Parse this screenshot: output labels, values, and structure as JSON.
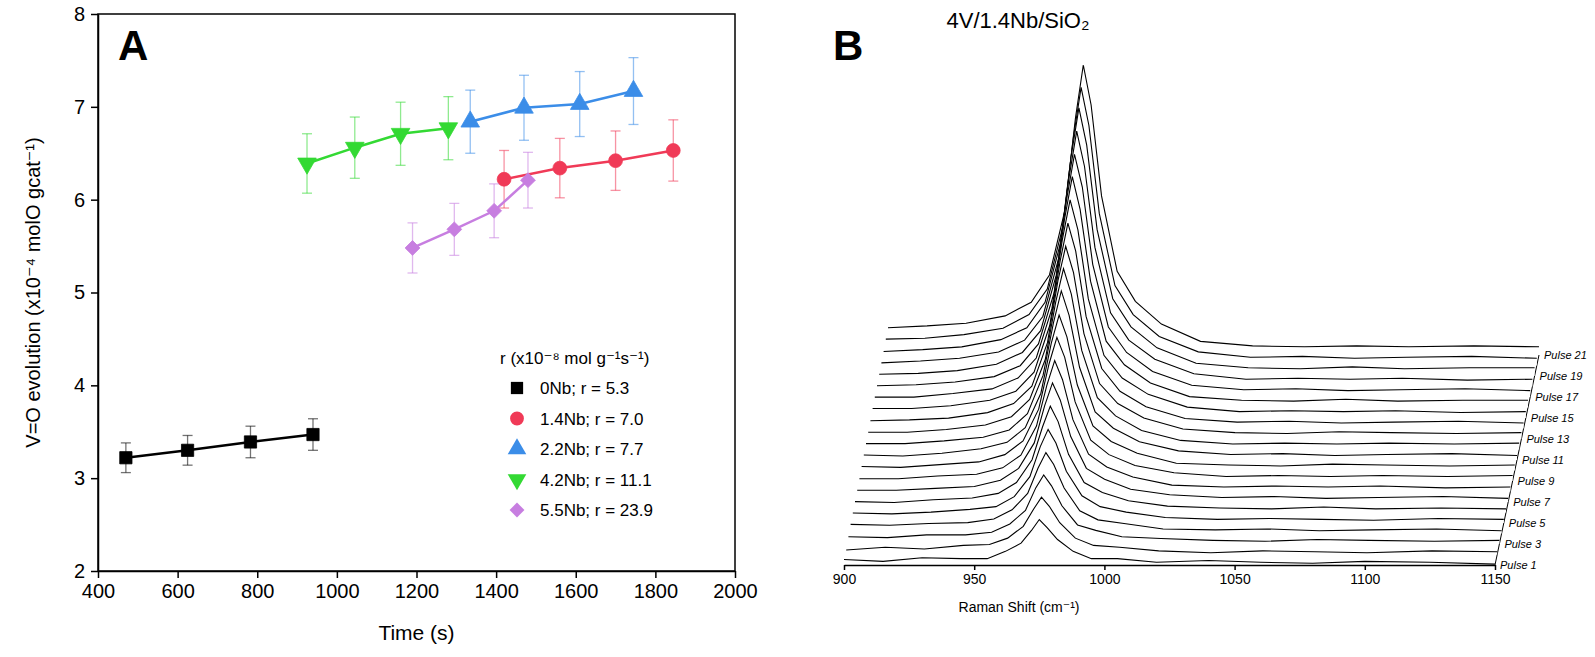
{
  "chart_data": [
    {
      "type": "line",
      "annotations": [
        "A"
      ],
      "x_label": "Time (s)",
      "y_label": "V=O evolution (x10⁻⁴ molO gcat⁻¹)",
      "xlim": [
        400,
        2000
      ],
      "xticks": [
        400,
        600,
        800,
        1000,
        1200,
        1400,
        1600,
        1800,
        2000
      ],
      "ylim": [
        2,
        8
      ],
      "yticks": [
        2,
        3,
        4,
        5,
        6,
        7,
        8
      ],
      "legend": "bottom-right",
      "legend_title": "r (x10⁻⁸ mol g⁻¹s⁻¹)",
      "series": [
        {
          "name": "0Nb; r = 5.3",
          "color": "#000000",
          "marker": "square",
          "line_style": "solid",
          "x": [
            470,
            625,
            783,
            940
          ],
          "values": [
            3.22,
            3.3,
            3.39,
            3.47
          ],
          "errors": [
            0.16,
            0.16,
            0.17,
            0.17
          ]
        },
        {
          "name": "1.4Nb; r = 7.0",
          "color": "#f03a57",
          "marker": "circle",
          "line_style": "solid",
          "x": [
            1420,
            1560,
            1700,
            1845
          ],
          "values": [
            6.22,
            6.34,
            6.42,
            6.53
          ],
          "errors": [
            0.31,
            0.32,
            0.32,
            0.33
          ]
        },
        {
          "name": "2.2Nb; r = 7.7",
          "color": "#3b8de8",
          "marker": "triangle-up",
          "line_style": "solid",
          "x": [
            1335,
            1470,
            1610,
            1745
          ],
          "values": [
            6.84,
            6.99,
            7.03,
            7.17
          ],
          "errors": [
            0.34,
            0.35,
            0.35,
            0.36
          ]
        },
        {
          "name": "4.2Nb; r = 11.1",
          "color": "#33d933",
          "marker": "triangle-down",
          "line_style": "solid",
          "x": [
            925,
            1045,
            1160,
            1280
          ],
          "values": [
            6.39,
            6.56,
            6.71,
            6.77
          ],
          "errors": [
            0.32,
            0.33,
            0.34,
            0.34
          ]
        },
        {
          "name": "5.5Nb; r = 23.9",
          "color": "#c77ee0",
          "marker": "diamond",
          "line_style": "solid",
          "x": [
            1190,
            1295,
            1395,
            1480
          ],
          "values": [
            5.48,
            5.68,
            5.88,
            6.21
          ],
          "errors": [
            0.27,
            0.28,
            0.29,
            0.3
          ]
        }
      ]
    },
    {
      "type": "waterfall",
      "title": "4V/1.4Nb/SiO₂",
      "annotations": [
        "B"
      ],
      "x_label": "Raman Shift (cm⁻¹)",
      "xlim": [
        900,
        1150
      ],
      "xticks": [
        900,
        950,
        1000,
        1050,
        1100,
        1150
      ],
      "ylim": [
        0,
        330
      ],
      "tick_labels": "x",
      "color": "#000000",
      "x": [
        900,
        915,
        930,
        945,
        955,
        962,
        968,
        972,
        975,
        978,
        982,
        988,
        995,
        1005,
        1020,
        1040,
        1060,
        1080,
        1100,
        1125,
        1150
      ],
      "series": [
        {
          "name": "Pulse 1",
          "values": [
            6,
            4,
            8,
            7,
            7,
            15,
            24,
            38,
            50,
            41,
            28,
            15,
            7,
            7,
            3,
            5,
            3,
            2,
            4,
            3,
            1
          ]
        },
        {
          "values": [
            5,
            8,
            6,
            10,
            11,
            18,
            31,
            50,
            63,
            53,
            35,
            18,
            10,
            8,
            4,
            2,
            4,
            3,
            2,
            4,
            3
          ]
        },
        {
          "name": "Pulse 3",
          "values": [
            8,
            7,
            10,
            10,
            13,
            22,
            37,
            62,
            76,
            64,
            42,
            21,
            15,
            8,
            6,
            4,
            3,
            5,
            4,
            3,
            4
          ]
        },
        {
          "values": [
            10,
            9,
            11,
            12,
            16,
            26,
            44,
            72,
            89,
            76,
            50,
            25,
            15,
            11,
            5,
            4,
            5,
            3,
            4,
            5,
            3
          ]
        },
        {
          "name": "Pulse 5",
          "values": [
            11,
            10,
            12,
            15,
            18,
            29,
            51,
            84,
            103,
            88,
            57,
            30,
            18,
            12,
            6,
            4,
            5,
            4,
            3,
            5,
            4
          ]
        },
        {
          "values": [
            12,
            11,
            14,
            16,
            21,
            33,
            58,
            94,
            117,
            100,
            64,
            33,
            22,
            13,
            7,
            5,
            4,
            6,
            4,
            5,
            4
          ]
        },
        {
          "name": "Pulse 7",
          "values": [
            13,
            13,
            15,
            17,
            24,
            37,
            65,
            106,
            131,
            112,
            72,
            37,
            25,
            14,
            8,
            5,
            6,
            4,
            5,
            6,
            4
          ]
        },
        {
          "values": [
            14,
            14,
            17,
            19,
            26,
            40,
            72,
            117,
            144,
            123,
            79,
            41,
            27,
            16,
            7,
            5,
            6,
            5,
            6,
            4,
            5
          ]
        },
        {
          "name": "Pulse 9",
          "values": [
            16,
            15,
            18,
            21,
            29,
            44,
            79,
            129,
            158,
            136,
            87,
            45,
            29,
            17,
            9,
            5,
            6,
            5,
            6,
            5,
            6
          ]
        },
        {
          "values": [
            17,
            16,
            19,
            24,
            31,
            47,
            85,
            140,
            171,
            147,
            94,
            49,
            32,
            19,
            8,
            6,
            5,
            7,
            6,
            5,
            6
          ]
        },
        {
          "name": "Pulse 11",
          "values": [
            18,
            18,
            21,
            25,
            33,
            51,
            93,
            151,
            186,
            159,
            102,
            53,
            35,
            20,
            10,
            6,
            7,
            5,
            6,
            7,
            5
          ]
        },
        {
          "values": [
            19,
            19,
            22,
            27,
            36,
            55,
            99,
            162,
            199,
            171,
            109,
            57,
            37,
            21,
            10,
            6,
            7,
            6,
            7,
            6,
            7
          ]
        },
        {
          "name": "Pulse 13",
          "values": [
            20,
            21,
            23,
            29,
            39,
            58,
            106,
            174,
            212,
            183,
            116,
            61,
            39,
            23,
            11,
            7,
            6,
            8,
            7,
            6,
            7
          ]
        },
        {
          "values": [
            22,
            22,
            25,
            31,
            41,
            62,
            113,
            184,
            226,
            195,
            123,
            66,
            41,
            24,
            11,
            7,
            8,
            6,
            7,
            8,
            6
          ]
        },
        {
          "name": "Pulse 15",
          "values": [
            23,
            23,
            27,
            32,
            44,
            66,
            120,
            196,
            240,
            207,
            131,
            69,
            44,
            26,
            12,
            7,
            8,
            7,
            8,
            6,
            7
          ]
        },
        {
          "values": [
            24,
            25,
            28,
            34,
            46,
            70,
            126,
            207,
            254,
            218,
            139,
            73,
            47,
            27,
            12,
            8,
            7,
            9,
            7,
            8,
            8
          ]
        },
        {
          "name": "Pulse 17",
          "values": [
            25,
            26,
            29,
            36,
            49,
            73,
            134,
            218,
            267,
            231,
            146,
            77,
            49,
            28,
            13,
            8,
            9,
            7,
            8,
            9,
            7
          ]
        },
        {
          "values": [
            26,
            28,
            31,
            38,
            51,
            77,
            140,
            229,
            281,
            242,
            153,
            81,
            51,
            30,
            14,
            8,
            9,
            8,
            9,
            7,
            8
          ]
        },
        {
          "name": "Pulse 19",
          "values": [
            27,
            29,
            32,
            40,
            53,
            81,
            147,
            241,
            295,
            254,
            161,
            85,
            54,
            31,
            14,
            9,
            8,
            10,
            8,
            9,
            9
          ]
        },
        {
          "values": [
            29,
            30,
            34,
            41,
            56,
            84,
            153,
            250,
            306,
            264,
            167,
            88,
            56,
            32,
            15,
            9,
            10,
            8,
            9,
            10,
            8
          ]
        },
        {
          "name": "Pulse 21",
          "values": [
            30,
            32,
            35,
            43,
            58,
            88,
            160,
            261,
            319,
            275,
            175,
            92,
            59,
            34,
            15,
            10,
            9,
            10,
            9,
            10,
            9
          ]
        }
      ]
    }
  ]
}
